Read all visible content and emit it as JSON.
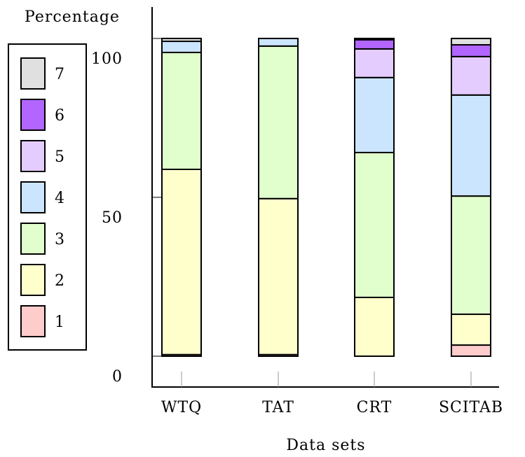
{
  "chart_data": {
    "type": "stacked-bar",
    "y_label": "Percentage",
    "x_label": "Data sets",
    "categories": [
      "WTQ",
      "TAT",
      "CRT",
      "SCITAB"
    ],
    "series": [
      {
        "name": "1",
        "color": "#ffcccc",
        "values": [
          0.5,
          0.5,
          0,
          3.5
        ]
      },
      {
        "name": "2",
        "color": "#ffffcc",
        "values": [
          58.3,
          49.1,
          18.5,
          9.7
        ]
      },
      {
        "name": "3",
        "color": "#e0ffcc",
        "values": [
          36.8,
          48.0,
          45.6,
          37.2
        ]
      },
      {
        "name": "4",
        "color": "#cce5ff",
        "values": [
          3.5,
          2.4,
          23.6,
          31.8
        ]
      },
      {
        "name": "5",
        "color": "#e5ccff",
        "values": [
          0,
          0,
          9.0,
          12.1
        ]
      },
      {
        "name": "6",
        "color": "#b266ff",
        "values": [
          0,
          0,
          2.9,
          3.7
        ]
      },
      {
        "name": "7",
        "color": "#e0e0e0",
        "values": [
          0.9,
          0,
          0.4,
          2.0
        ]
      }
    ],
    "ylim": [
      -9.7,
      109.9
    ],
    "yticks": [
      0,
      50,
      100
    ]
  }
}
